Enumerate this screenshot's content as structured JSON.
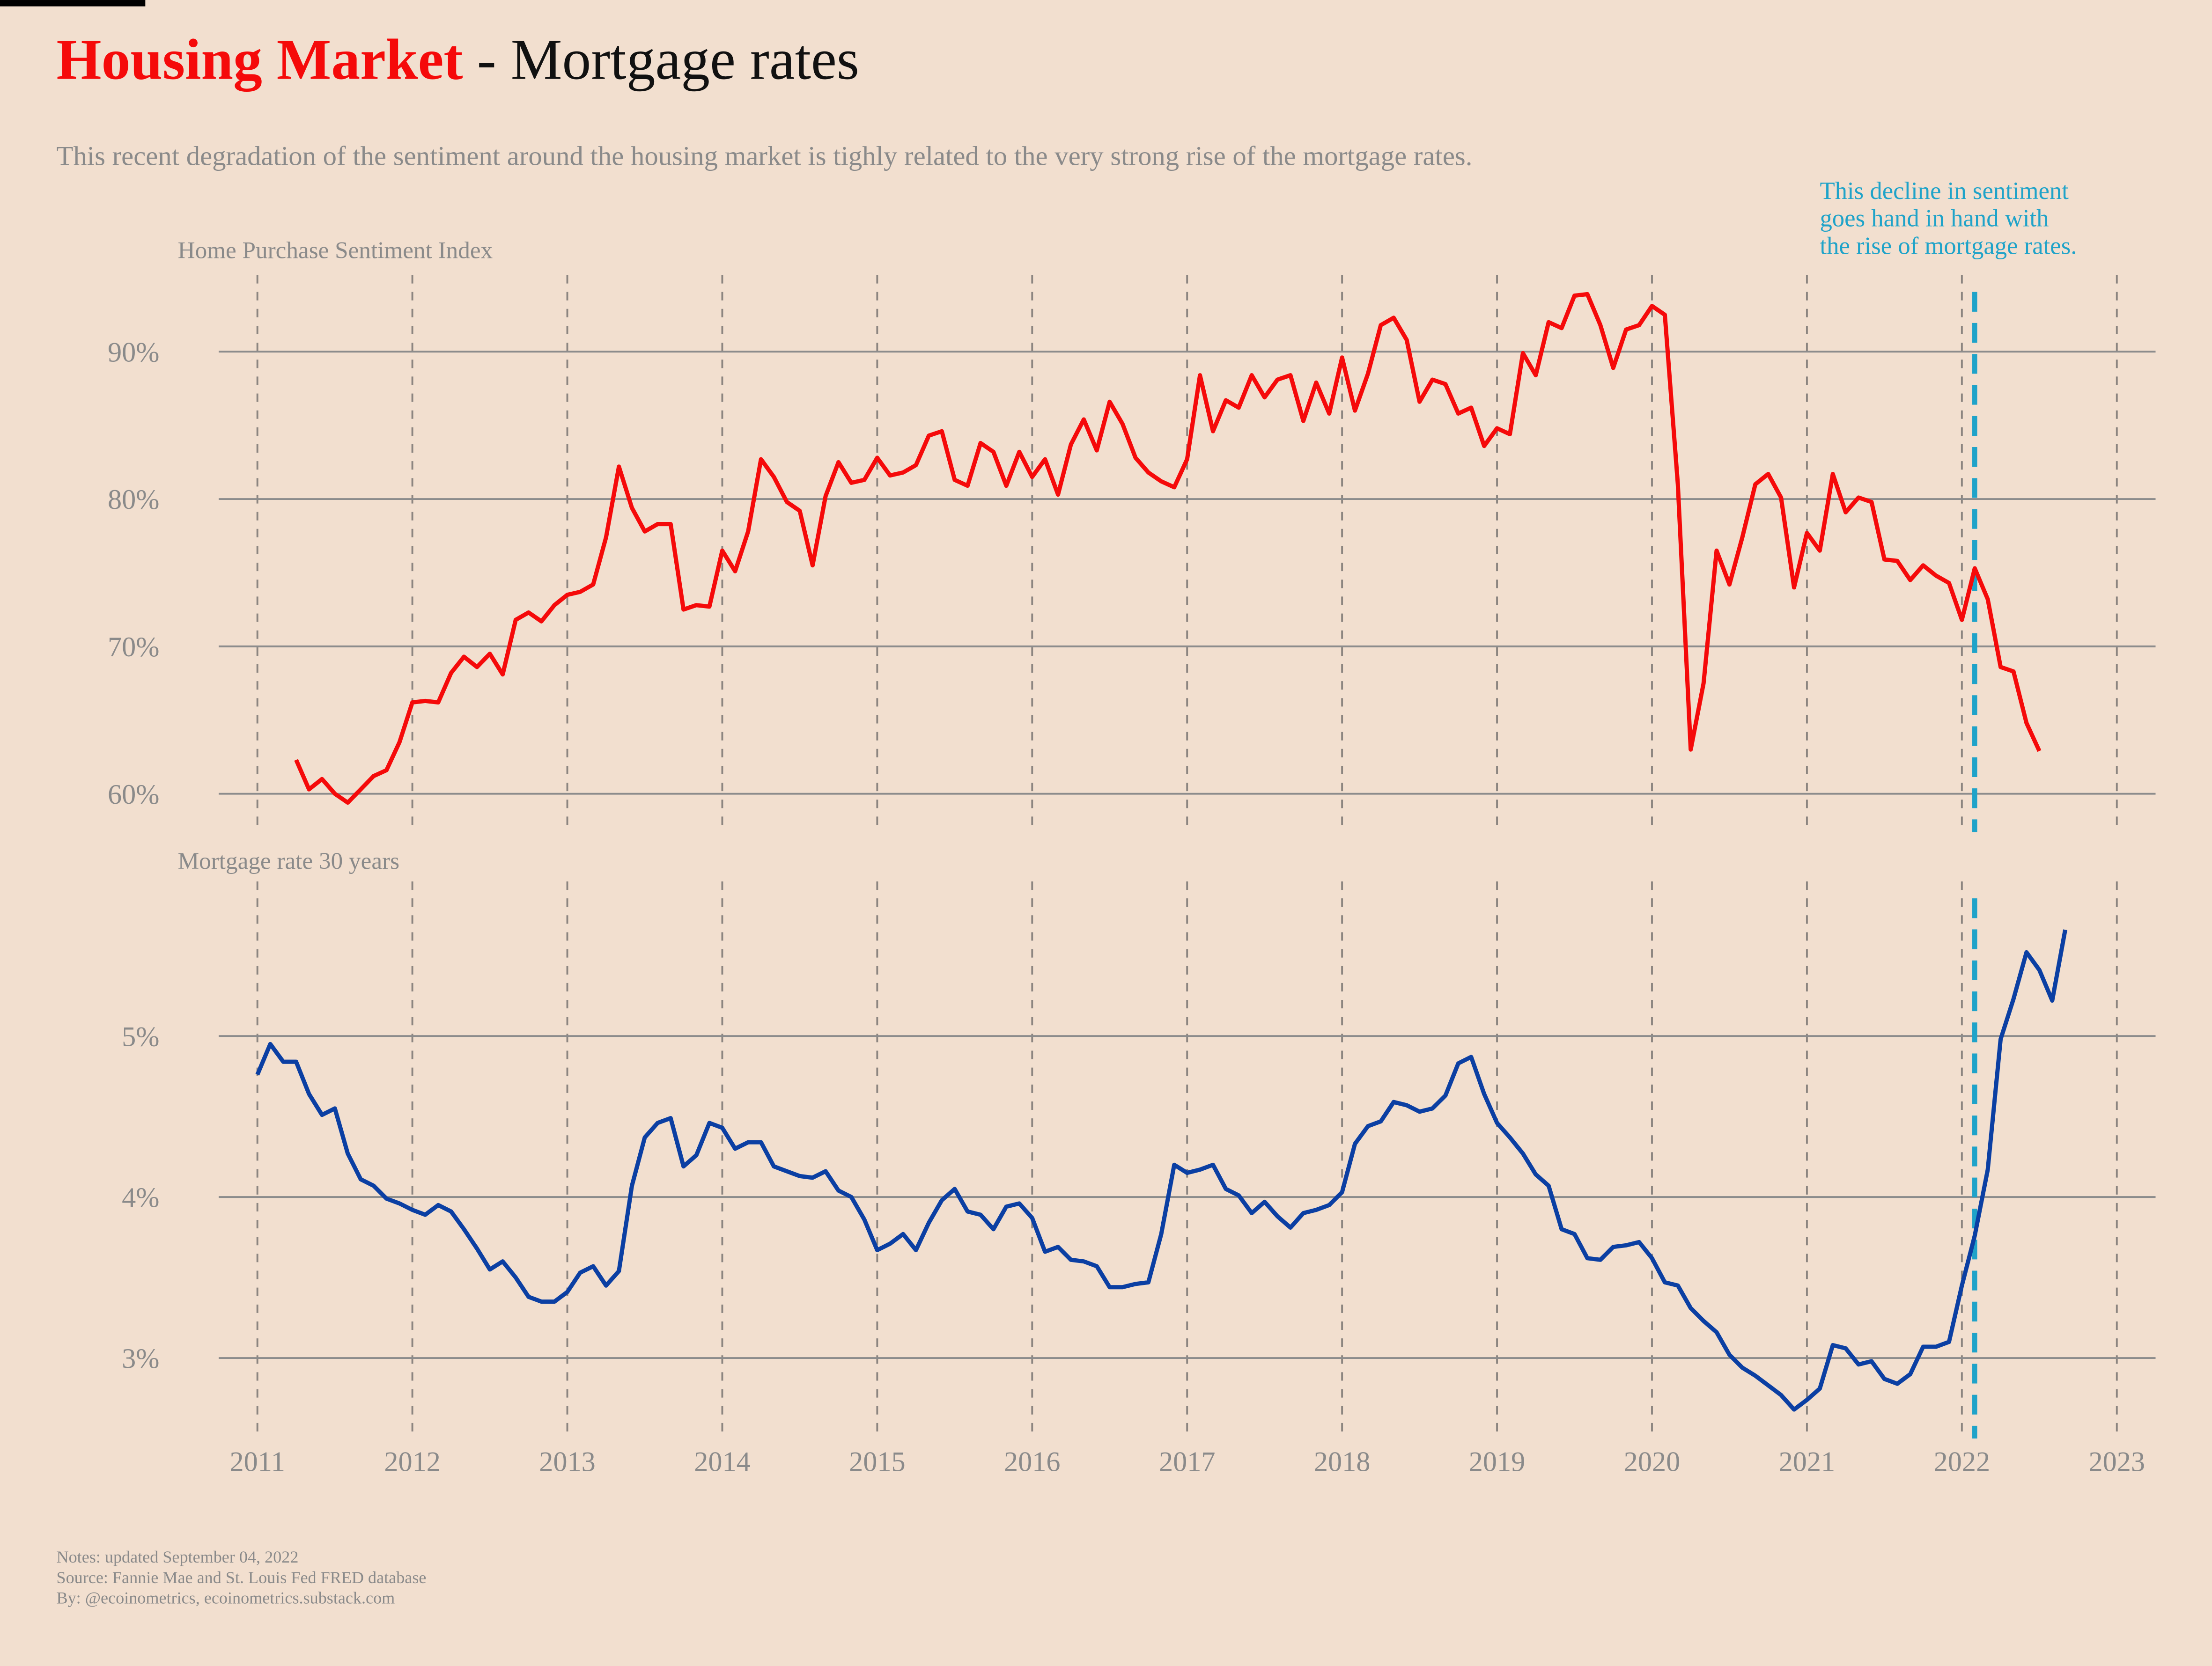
{
  "header": {
    "title_main": "Housing Market",
    "title_rest": "- Mortgage rates",
    "subtitle": "This recent degradation of the sentiment around the housing market is tighly related to the very strong rise of the mortgage rates.",
    "notes": [
      "Notes: updated September 04, 2022",
      "Source: Fannie Mae and St. Louis Fed FRED database",
      "By: @ecoinometrics, ecoinometrics.substack.com"
    ]
  },
  "annotation": {
    "x": 2022.083,
    "color": "#1fa3c9",
    "text": [
      "This decline in sentiment",
      "goes hand in hand with",
      "the rise of mortgage rates."
    ]
  },
  "chart_data": [
    {
      "type": "line",
      "title": "Home Purchase Sentiment Index",
      "color": "#f50a0a",
      "xlim": [
        2010.75,
        2023.25
      ],
      "ylim": [
        57.4,
        95.2
      ],
      "yticks": [
        {
          "value": 60,
          "label": "60%"
        },
        {
          "value": 70,
          "label": "70%"
        },
        {
          "value": 80,
          "label": "80%"
        },
        {
          "value": 90,
          "label": "90%"
        }
      ],
      "x": [
        2011.25,
        2011.333,
        2011.417,
        2011.5,
        2011.583,
        2011.667,
        2011.75,
        2011.833,
        2011.917,
        2012,
        2012.083,
        2012.167,
        2012.25,
        2012.333,
        2012.417,
        2012.5,
        2012.583,
        2012.667,
        2012.75,
        2012.833,
        2012.917,
        2013,
        2013.083,
        2013.167,
        2013.25,
        2013.333,
        2013.417,
        2013.5,
        2013.583,
        2013.667,
        2013.75,
        2013.833,
        2013.917,
        2014,
        2014.083,
        2014.167,
        2014.25,
        2014.333,
        2014.417,
        2014.5,
        2014.583,
        2014.667,
        2014.75,
        2014.833,
        2014.917,
        2015,
        2015.083,
        2015.167,
        2015.25,
        2015.333,
        2015.417,
        2015.5,
        2015.583,
        2015.667,
        2015.75,
        2015.833,
        2015.917,
        2016,
        2016.083,
        2016.167,
        2016.25,
        2016.333,
        2016.417,
        2016.5,
        2016.583,
        2016.667,
        2016.75,
        2016.833,
        2016.917,
        2017,
        2017.083,
        2017.167,
        2017.25,
        2017.333,
        2017.417,
        2017.5,
        2017.583,
        2017.667,
        2017.75,
        2017.833,
        2017.917,
        2018,
        2018.083,
        2018.167,
        2018.25,
        2018.333,
        2018.417,
        2018.5,
        2018.583,
        2018.667,
        2018.75,
        2018.833,
        2018.917,
        2019,
        2019.083,
        2019.167,
        2019.25,
        2019.333,
        2019.417,
        2019.5,
        2019.583,
        2019.667,
        2019.75,
        2019.833,
        2019.917,
        2020,
        2020.083,
        2020.167,
        2020.25,
        2020.333,
        2020.417,
        2020.5,
        2020.583,
        2020.667,
        2020.75,
        2020.833,
        2020.917,
        2021,
        2021.083,
        2021.167,
        2021.25,
        2021.333,
        2021.417,
        2021.5,
        2021.583,
        2021.667,
        2021.75,
        2021.833,
        2021.917,
        2022,
        2022.083,
        2022.167,
        2022.25,
        2022.333,
        2022.417,
        2022.5
      ],
      "values": [
        62.3,
        60.3,
        61,
        60,
        59.4,
        60.3,
        61.2,
        61.6,
        63.5,
        66.2,
        66.3,
        66.2,
        68.2,
        69.3,
        68.6,
        69.5,
        68.1,
        71.8,
        72.3,
        71.7,
        72.8,
        73.5,
        73.7,
        74.2,
        77.4,
        82.2,
        79.4,
        77.8,
        78.3,
        78.3,
        72.5,
        72.8,
        72.7,
        76.5,
        75.1,
        77.8,
        82.7,
        81.5,
        79.8,
        79.2,
        75.5,
        80.2,
        82.5,
        81.1,
        81.3,
        82.8,
        81.6,
        81.8,
        82.3,
        84.3,
        84.6,
        81.3,
        80.9,
        83.8,
        83.2,
        80.9,
        83.2,
        81.5,
        82.7,
        80.3,
        83.7,
        85.4,
        83.3,
        86.6,
        85.1,
        82.8,
        81.8,
        81.2,
        80.8,
        82.7,
        88.4,
        84.6,
        86.7,
        86.2,
        88.4,
        86.9,
        88.1,
        88.4,
        85.3,
        87.9,
        85.8,
        89.6,
        86,
        88.5,
        91.8,
        92.3,
        90.8,
        86.6,
        88.1,
        87.8,
        85.8,
        86.2,
        83.6,
        84.8,
        84.4,
        89.9,
        88.4,
        92,
        91.6,
        93.8,
        93.9,
        91.8,
        88.9,
        91.5,
        91.8,
        93.1,
        92.5,
        81,
        63,
        67.5,
        76.5,
        74.2,
        77.4,
        81,
        81.7,
        80.1,
        74,
        77.7,
        76.5,
        81.7,
        79.1,
        80.1,
        79.8,
        75.9,
        75.8,
        74.5,
        75.5,
        74.8,
        74.3,
        71.8,
        75.3,
        73.2,
        68.6,
        68.3,
        64.8,
        62.9
      ]
    },
    {
      "type": "line",
      "title": "Mortgage rate 30 years",
      "color": "#0b3fa3",
      "xlim": [
        2010.75,
        2023.25
      ],
      "ylim": [
        2.5,
        5.96
      ],
      "xticks": [
        2011,
        2012,
        2013,
        2014,
        2015,
        2016,
        2017,
        2018,
        2019,
        2020,
        2021,
        2022,
        2023
      ],
      "yticks": [
        {
          "value": 3,
          "label": "3%"
        },
        {
          "value": 4,
          "label": "4%"
        },
        {
          "value": 5,
          "label": "5%"
        }
      ],
      "x": [
        2011,
        2011.083,
        2011.167,
        2011.25,
        2011.333,
        2011.417,
        2011.5,
        2011.583,
        2011.667,
        2011.75,
        2011.833,
        2011.917,
        2012,
        2012.083,
        2012.167,
        2012.25,
        2012.333,
        2012.417,
        2012.5,
        2012.583,
        2012.667,
        2012.75,
        2012.833,
        2012.917,
        2013,
        2013.083,
        2013.167,
        2013.25,
        2013.333,
        2013.417,
        2013.5,
        2013.583,
        2013.667,
        2013.75,
        2013.833,
        2013.917,
        2014,
        2014.083,
        2014.167,
        2014.25,
        2014.333,
        2014.417,
        2014.5,
        2014.583,
        2014.667,
        2014.75,
        2014.833,
        2014.917,
        2015,
        2015.083,
        2015.167,
        2015.25,
        2015.333,
        2015.417,
        2015.5,
        2015.583,
        2015.667,
        2015.75,
        2015.833,
        2015.917,
        2016,
        2016.083,
        2016.167,
        2016.25,
        2016.333,
        2016.417,
        2016.5,
        2016.583,
        2016.667,
        2016.75,
        2016.833,
        2016.917,
        2017,
        2017.083,
        2017.167,
        2017.25,
        2017.333,
        2017.417,
        2017.5,
        2017.583,
        2017.667,
        2017.75,
        2017.833,
        2017.917,
        2018,
        2018.083,
        2018.167,
        2018.25,
        2018.333,
        2018.417,
        2018.5,
        2018.583,
        2018.667,
        2018.75,
        2018.833,
        2018.917,
        2019,
        2019.083,
        2019.167,
        2019.25,
        2019.333,
        2019.417,
        2019.5,
        2019.583,
        2019.667,
        2019.75,
        2019.833,
        2019.917,
        2020,
        2020.083,
        2020.167,
        2020.25,
        2020.333,
        2020.417,
        2020.5,
        2020.583,
        2020.667,
        2020.75,
        2020.833,
        2020.917,
        2021,
        2021.083,
        2021.167,
        2021.25,
        2021.333,
        2021.417,
        2021.5,
        2021.583,
        2021.667,
        2021.75,
        2021.833,
        2021.917,
        2022,
        2022.083,
        2022.167,
        2022.25,
        2022.333,
        2022.417,
        2022.5,
        2022.583,
        2022.667
      ],
      "values": [
        4.76,
        4.95,
        4.84,
        4.84,
        4.64,
        4.51,
        4.55,
        4.27,
        4.11,
        4.07,
        3.99,
        3.96,
        3.92,
        3.89,
        3.95,
        3.91,
        3.8,
        3.68,
        3.55,
        3.6,
        3.5,
        3.38,
        3.35,
        3.35,
        3.41,
        3.53,
        3.57,
        3.45,
        3.54,
        4.07,
        4.37,
        4.46,
        4.49,
        4.19,
        4.26,
        4.46,
        4.43,
        4.3,
        4.34,
        4.34,
        4.19,
        4.16,
        4.13,
        4.12,
        4.16,
        4.04,
        4,
        3.86,
        3.67,
        3.71,
        3.77,
        3.67,
        3.84,
        3.98,
        4.05,
        3.91,
        3.89,
        3.8,
        3.94,
        3.96,
        3.87,
        3.66,
        3.69,
        3.61,
        3.6,
        3.57,
        3.44,
        3.44,
        3.46,
        3.47,
        3.77,
        4.2,
        4.15,
        4.17,
        4.2,
        4.05,
        4.01,
        3.9,
        3.97,
        3.88,
        3.81,
        3.9,
        3.92,
        3.95,
        4.03,
        4.33,
        4.44,
        4.47,
        4.59,
        4.57,
        4.53,
        4.55,
        4.63,
        4.83,
        4.87,
        4.64,
        4.46,
        4.37,
        4.27,
        4.14,
        4.07,
        3.8,
        3.77,
        3.62,
        3.61,
        3.69,
        3.7,
        3.72,
        3.62,
        3.47,
        3.45,
        3.31,
        3.23,
        3.16,
        3.02,
        2.94,
        2.89,
        2.83,
        2.77,
        2.68,
        2.74,
        2.81,
        3.08,
        3.06,
        2.96,
        2.98,
        2.87,
        2.84,
        2.9,
        3.07,
        3.07,
        3.1,
        3.45,
        3.76,
        4.17,
        4.98,
        5.23,
        5.52,
        5.41,
        5.22,
        5.66
      ]
    }
  ]
}
